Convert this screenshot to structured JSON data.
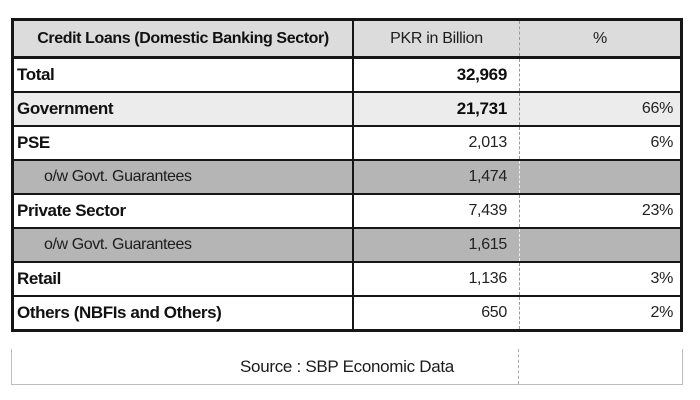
{
  "chart_data": {
    "type": "table",
    "title": "Credit Loans (Domestic Banking Sector)",
    "columns": [
      "Credit Loans (Domestic Banking Sector)",
      "PKR in Billion",
      "%"
    ],
    "rows": [
      {
        "label": "Total",
        "pkr_billion": 32969,
        "percent": null
      },
      {
        "label": "Government",
        "pkr_billion": 21731,
        "percent": 66
      },
      {
        "label": "PSE",
        "pkr_billion": 2013,
        "percent": 6
      },
      {
        "label": "o/w Govt. Guarantees",
        "pkr_billion": 1474,
        "percent": null
      },
      {
        "label": "Private Sector",
        "pkr_billion": 7439,
        "percent": 23
      },
      {
        "label": "o/w Govt. Guarantees",
        "pkr_billion": 1615,
        "percent": null
      },
      {
        "label": "Retail",
        "pkr_billion": 1136,
        "percent": 3
      },
      {
        "label": "Others (NBFIs and Others)",
        "pkr_billion": 650,
        "percent": 2
      }
    ],
    "source": "Source : SBP Economic Data"
  },
  "table": {
    "header": {
      "col1": "Credit Loans (Domestic Banking Sector)",
      "col2": "PKR in Billion",
      "col3": "%"
    },
    "rows": [
      {
        "label": "Total",
        "value": "32,969",
        "pct": ""
      },
      {
        "label": "Government",
        "value": "21,731",
        "pct": "66%"
      },
      {
        "label": "PSE",
        "value": "2,013",
        "pct": "6%"
      },
      {
        "label": "o/w Govt. Guarantees",
        "value": "1,474",
        "pct": ""
      },
      {
        "label": "Private Sector",
        "value": "7,439",
        "pct": "23%"
      },
      {
        "label": "o/w Govt. Guarantees",
        "value": "1,615",
        "pct": ""
      },
      {
        "label": "Retail",
        "value": "1,136",
        "pct": "3%"
      },
      {
        "label": "Others (NBFIs and Others)",
        "value": "650",
        "pct": "2%"
      }
    ],
    "footer": "Source : SBP Economic Data"
  },
  "colors": {
    "header_bg": "#dcdcdc",
    "highlight_row_bg": "#ececec",
    "gray_row_bg": "#b5b5b5",
    "border": "#161616",
    "dashed_separator": "#999999"
  }
}
